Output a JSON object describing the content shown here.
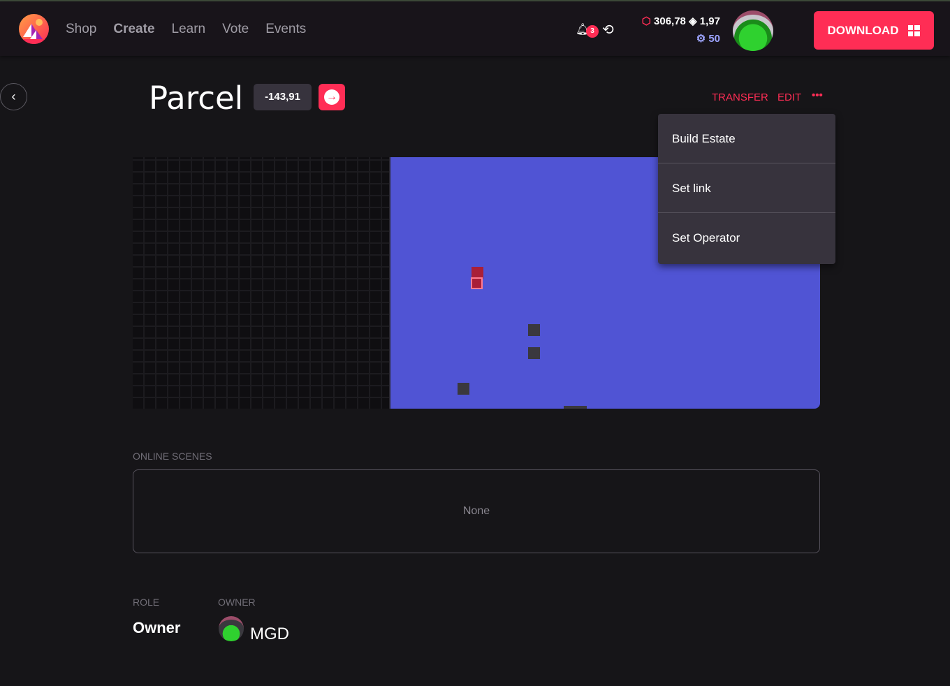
{
  "nav": {
    "items": [
      "Shop",
      "Create",
      "Learn",
      "Vote",
      "Events"
    ]
  },
  "header": {
    "notifications": "3",
    "mana": "306,78",
    "eth": "1,97",
    "points": "50",
    "download": "DOWNLOAD"
  },
  "parcel": {
    "title": "Parcel",
    "coords": "-143,91",
    "actions": {
      "transfer": "TRANSFER",
      "edit": "EDIT",
      "more": "•••"
    }
  },
  "menu": [
    "Build Estate",
    "Set link",
    "Set Operator"
  ],
  "colors": {
    "accent": "#ff2d55",
    "map_owned": "#5054d4",
    "selected": "#a91f38"
  },
  "scenes": {
    "label": "ONLINE SCENES",
    "value": "None"
  },
  "role": {
    "label": "ROLE",
    "value": "Owner"
  },
  "owner": {
    "label": "OWNER",
    "name": "MGD"
  }
}
